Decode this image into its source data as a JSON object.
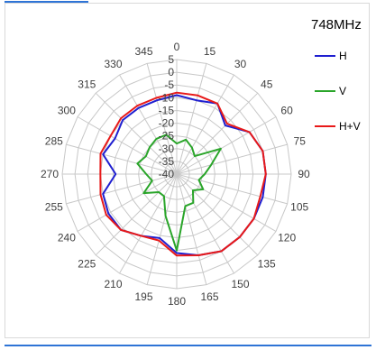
{
  "chart_data": {
    "type": "polar-line",
    "title": "748MHz",
    "angles": [
      0,
      15,
      30,
      45,
      60,
      75,
      90,
      105,
      120,
      135,
      150,
      165,
      180,
      195,
      210,
      225,
      240,
      255,
      270,
      285,
      300,
      315,
      330,
      345
    ],
    "angle_labels": [
      "0",
      "15",
      "30",
      "45",
      "60",
      "75",
      "90",
      "105",
      "120",
      "135",
      "150",
      "165",
      "180",
      "195",
      "210",
      "225",
      "240",
      "255",
      "270",
      "285",
      "300",
      "315",
      "330",
      "345"
    ],
    "radial_ticks": [
      5,
      0,
      -5,
      -10,
      -15,
      -20,
      -25,
      -30,
      -35,
      -40
    ],
    "radial_labels": [
      "5",
      "0",
      "-5",
      "-10",
      "-15",
      "-20",
      "-25",
      "-30",
      "-35",
      "-40"
    ],
    "rlim": [
      -40,
      5
    ],
    "series": [
      {
        "name": "H",
        "color": "#1f1fd0",
        "values": [
          -9,
          -10,
          -8,
          -13,
          -7,
          -5,
          -5,
          -5,
          -5,
          -5,
          -5,
          -7,
          -9,
          -14,
          -12,
          -9,
          -9,
          -10,
          -16,
          -10,
          -12,
          -10,
          -10,
          -10
        ]
      },
      {
        "name": "V",
        "color": "#2aa52a",
        "values": [
          -28,
          -26,
          -28,
          -30,
          -20,
          -26,
          -29,
          -31,
          -28,
          -31,
          -27,
          -27,
          -10,
          -23,
          -30,
          -30,
          -25,
          -30,
          -28,
          -24,
          -26,
          -25,
          -24,
          -24
        ]
      },
      {
        "name": "H+V",
        "color": "#e81919",
        "values": [
          -8,
          -8,
          -8,
          -12,
          -7,
          -5,
          -5,
          -6,
          -5,
          -5,
          -5,
          -7,
          -8,
          -13,
          -12,
          -9,
          -8,
          -9,
          -10,
          -9,
          -10,
          -9,
          -9,
          -9
        ]
      }
    ],
    "legend_position": "right",
    "grid": true
  }
}
